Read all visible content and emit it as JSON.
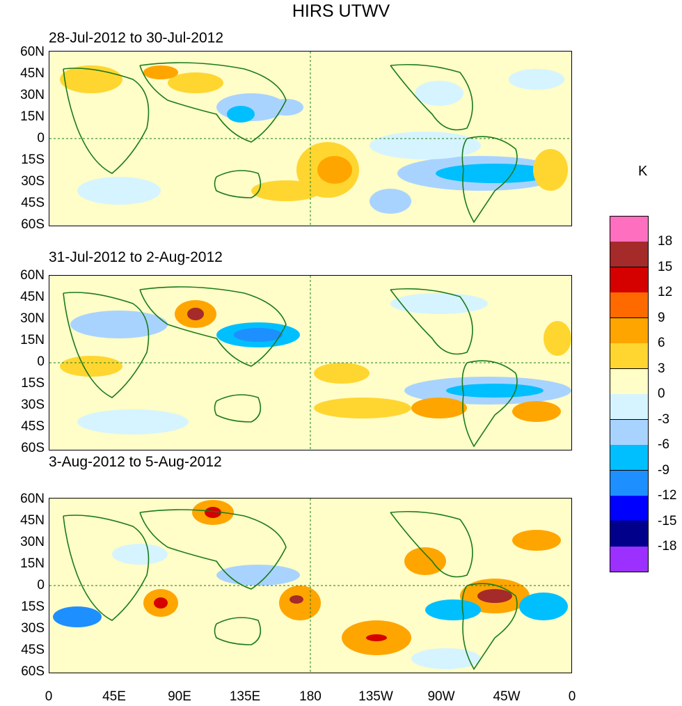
{
  "title": "HIRS UTWV",
  "colorbar": {
    "unit": "K",
    "colors": [
      "#ff6fbf",
      "#a52a2a",
      "#d50000",
      "#ff6a00",
      "#ffa500",
      "#ffd630",
      "#fffdc8",
      "#d5f4ff",
      "#a9d3ff",
      "#00bfff",
      "#1e8fff",
      "#0000ff",
      "#00008b",
      "#9b30ff"
    ],
    "labels": [
      "18",
      "15",
      "12",
      "9",
      "6",
      "3",
      "0",
      "-3",
      "-6",
      "-9",
      "-12",
      "-15",
      "-18"
    ]
  },
  "axes": {
    "lat_labels": [
      "60N",
      "45N",
      "30N",
      "15N",
      "0",
      "15S",
      "30S",
      "45S",
      "60S"
    ],
    "lon_labels": [
      "0",
      "45E",
      "90E",
      "135E",
      "180",
      "135W",
      "90W",
      "45W",
      "0"
    ]
  },
  "panels": [
    {
      "date_range": "28-Jul-2012 to 30-Jul-2012"
    },
    {
      "date_range": "31-Jul-2012 to 2-Aug-2012"
    },
    {
      "date_range": "3-Aug-2012 to 5-Aug-2012"
    }
  ],
  "map_style": {
    "coastline_color": "#1a7a1a",
    "reference_line_color": "#1a7a1a"
  }
}
